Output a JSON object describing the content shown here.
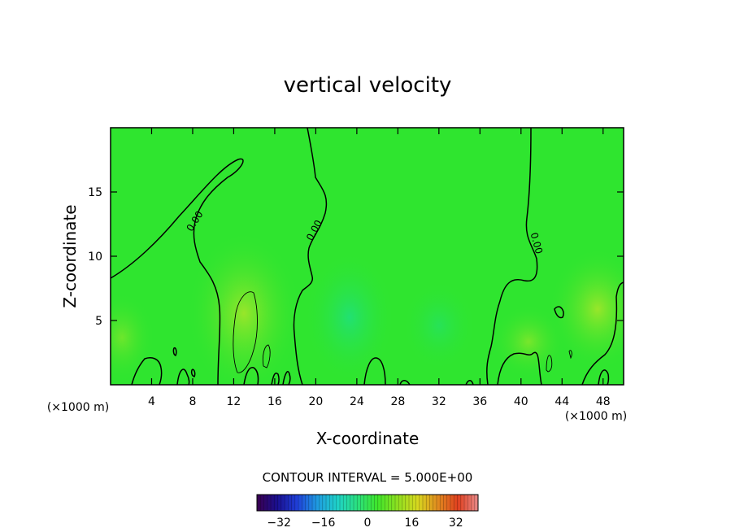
{
  "chart_data": {
    "type": "heatmap",
    "title": "vertical velocity",
    "xlabel": "X-coordinate",
    "ylabel": "Z-coordinate",
    "x_unit_left": "(×1000 m)",
    "x_unit_right": "(×1000 m)",
    "xlim": [
      0,
      50
    ],
    "ylim": [
      0,
      20
    ],
    "x_ticks": [
      4,
      8,
      12,
      16,
      20,
      24,
      28,
      32,
      36,
      40,
      44,
      48
    ],
    "y_ticks": [
      5,
      10,
      15
    ],
    "contour_interval_text": "CONTOUR INTERVAL = 5.000E+00",
    "contour_labels": [
      "0.00",
      "0.00",
      "0.00"
    ],
    "colorbar": {
      "range": [
        -40,
        40
      ],
      "tick_values": [
        -32,
        -16,
        0,
        16,
        32
      ],
      "tick_labels": [
        "−32",
        "−16",
        "0",
        "16",
        "32"
      ]
    },
    "colormap": [
      "#3a0050",
      "#1a0f8f",
      "#1f3fd9",
      "#1f9be0",
      "#1fd2c8",
      "#2be07e",
      "#3fe62b",
      "#8fe020",
      "#d8d81f",
      "#e08a1f",
      "#e0401f",
      "#e88a8a"
    ]
  }
}
